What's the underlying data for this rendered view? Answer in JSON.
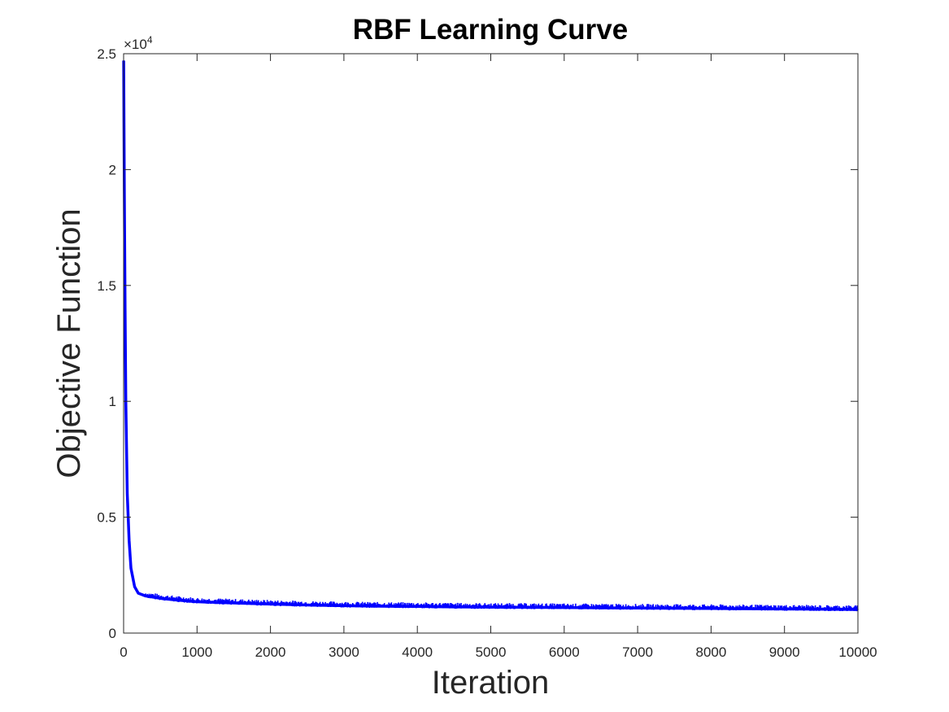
{
  "chart_data": {
    "type": "line",
    "title": "RBF Learning Curve",
    "xlabel": "Iteration",
    "ylabel": "Objective Function",
    "xlim": [
      0,
      10000
    ],
    "ylim": [
      0,
      25000
    ],
    "x_ticks": [
      0,
      1000,
      2000,
      3000,
      4000,
      5000,
      6000,
      7000,
      8000,
      9000,
      10000
    ],
    "x_tick_labels": [
      "0",
      "1000",
      "2000",
      "3000",
      "4000",
      "5000",
      "6000",
      "7000",
      "8000",
      "9000",
      "10000"
    ],
    "y_ticks": [
      0,
      5000,
      10000,
      15000,
      20000,
      25000
    ],
    "y_tick_labels": [
      "0",
      "0.5",
      "1",
      "1.5",
      "2",
      "2.5"
    ],
    "y_exponent_base": "×10",
    "y_exponent_power": "4",
    "grid": false,
    "line_color": "#0000ff",
    "series": [
      {
        "x": [
          1,
          5,
          10,
          20,
          30,
          50,
          75,
          100,
          150,
          200,
          300,
          500,
          700,
          1000,
          1500,
          2000,
          2500,
          3000,
          3500,
          4000,
          4500,
          5000,
          5500,
          6000,
          6500,
          7000,
          7500,
          8000,
          8500,
          9000,
          9500,
          10000
        ],
        "y": [
          24700,
          22000,
          19000,
          14000,
          10000,
          6000,
          4000,
          2800,
          2000,
          1720,
          1600,
          1500,
          1430,
          1350,
          1300,
          1250,
          1210,
          1180,
          1160,
          1150,
          1130,
          1120,
          1110,
          1100,
          1090,
          1080,
          1070,
          1060,
          1050,
          1040,
          1030,
          1020
        ]
      }
    ]
  }
}
